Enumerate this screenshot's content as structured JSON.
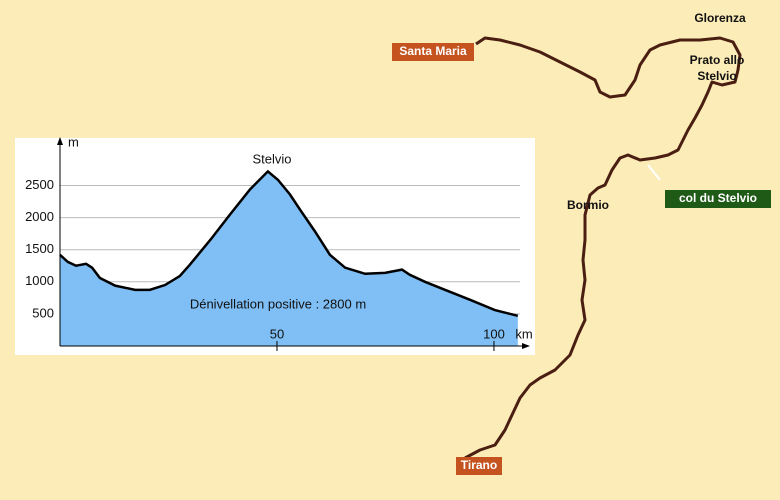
{
  "chart_data": {
    "type": "area",
    "x": [
      0,
      1.8,
      3.7,
      6,
      7.4,
      9.2,
      12.7,
      17.3,
      20.7,
      24.2,
      27.6,
      29.9,
      34.6,
      39.2,
      43.8,
      47.9,
      50.2,
      53,
      55.3,
      58.8,
      62.2,
      65.7,
      70.3,
      74.9,
      78.8,
      80.6,
      84.1,
      88.7,
      94.5,
      100.2,
      105.5
    ],
    "values": [
      1420,
      1310,
      1250,
      1280,
      1220,
      1060,
      940,
      875,
      875,
      950,
      1090,
      1265,
      1650,
      2050,
      2440,
      2720,
      2590,
      2360,
      2125,
      1780,
      1420,
      1220,
      1125,
      1140,
      1190,
      1110,
      1000,
      875,
      720,
      560,
      470
    ],
    "color": "#7fbff5",
    "xlim": [
      0,
      106
    ],
    "ylim": [
      0,
      3100
    ],
    "xticks": [
      50,
      100
    ],
    "yticks": [
      500,
      1000,
      1500,
      2000,
      2500
    ],
    "x_label": "km",
    "y_label": "m",
    "grid": true,
    "annotations": [
      "Stelvio",
      "Dénivellation positive : 2800 m"
    ]
  },
  "map": {
    "labels": [
      "Santa Maria",
      "Glorenza",
      "Prato allo",
      "Stelvio",
      "col du Stelvio",
      "Bormio",
      "Tirano"
    ]
  }
}
